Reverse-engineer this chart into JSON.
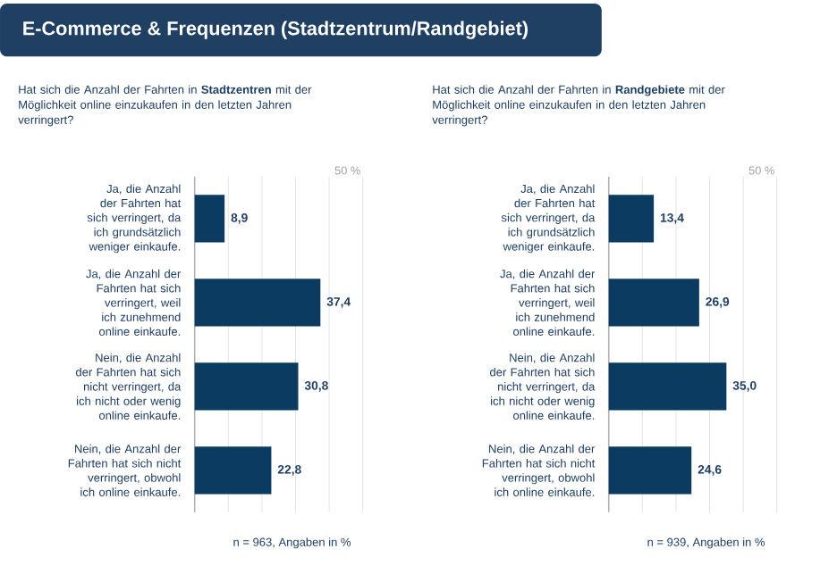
{
  "chart_data": [
    {
      "type": "bar",
      "orientation": "horizontal",
      "title": "E-Commerce & Frequenzen (Stadtzentrum/Randgebiet)",
      "subtitle": "Hat sich die Anzahl der Fahrten in **Stadtzentren** mit der Möglichkeit online einzukaufen in den letzten Jahren verringert?",
      "categories": [
        "Ja, die Anzahl der Fahrten hat sich verringert, da ich grundsätzlich weniger einkaufe.",
        "Ja, die Anzahl der Fahrten hat sich verringert, weil ich zunehmend online einkaufe.",
        "Nein, die Anzahl der Fahrten hat sich nicht verringert, da ich nicht oder wenig online einkaufe.",
        "Nein, die Anzahl der Fahrten hat sich nicht verringert, obwohl ich online einkaufe."
      ],
      "values": [
        8.9,
        37.4,
        30.8,
        22.8
      ],
      "value_labels": [
        "8,9",
        "37,4",
        "30,8",
        "22,8"
      ],
      "color": "#0b3b60",
      "ref_lines": [
        {
          "axis": "x",
          "value": 10,
          "color": "#e4e4e4"
        },
        {
          "axis": "x",
          "value": 20,
          "color": "#e4e4e4"
        },
        {
          "axis": "x",
          "value": 30,
          "color": "#e4e4e4"
        },
        {
          "axis": "x",
          "value": 40,
          "color": "#e4e4e4"
        },
        {
          "axis": "x",
          "value": 50,
          "label": "50 %",
          "color": "#e4e4e4"
        }
      ],
      "annotations": [
        "n = 963, Angaben in %"
      ]
    },
    {
      "type": "bar",
      "orientation": "horizontal",
      "subtitle": "Hat sich die Anzahl der Fahrten in **Randgebiete** mit der Möglichkeit online einzukaufen in den letzten Jahren verringert?",
      "categories": [
        "Ja, die Anzahl der Fahrten hat sich verringert, da ich grundsätzlich weniger einkaufe.",
        "Ja, die Anzahl der Fahrten hat sich verringert, weil ich zunehmend online einkaufe.",
        "Nein, die Anzahl der Fahrten hat sich nicht verringert, da ich nicht oder wenig online einkaufe.",
        "Nein, die Anzahl der Fahrten hat sich nicht verringert, obwohl ich online einkaufe."
      ],
      "values": [
        13.4,
        26.9,
        35.0,
        24.6
      ],
      "value_labels": [
        "13,4",
        "26,9",
        "35,0",
        "24,6"
      ],
      "color": "#0b3b60",
      "ref_lines": [
        {
          "axis": "x",
          "value": 10,
          "color": "#e4e4e4"
        },
        {
          "axis": "x",
          "value": 20,
          "color": "#e4e4e4"
        },
        {
          "axis": "x",
          "value": 30,
          "color": "#e4e4e4"
        },
        {
          "axis": "x",
          "value": 40,
          "color": "#e4e4e4"
        },
        {
          "axis": "x",
          "value": 50,
          "label": "50 %",
          "color": "#e4e4e4"
        }
      ],
      "annotations": [
        "n = 939, Angaben in %"
      ]
    }
  ]
}
